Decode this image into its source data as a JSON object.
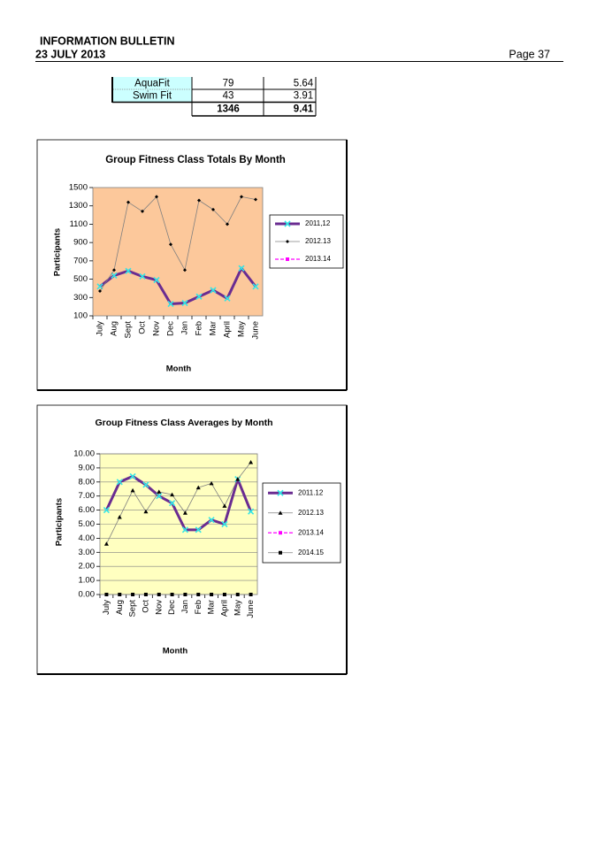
{
  "header": {
    "title": "INFORMATION BULLETIN",
    "date": "23 JULY 2013",
    "page": "Page 37"
  },
  "table": {
    "rows": [
      [
        "AquaFit",
        "79",
        "5.64"
      ],
      [
        "Swim Fit",
        "43",
        "3.91"
      ]
    ],
    "total": [
      "1346",
      "9.41"
    ]
  },
  "chart_data": [
    {
      "type": "line",
      "title": "Group Fitness Class Totals By Month",
      "y_label": "Participants",
      "x_label": "Month",
      "categories": [
        "July",
        "Aug",
        "Sept",
        "Oct",
        "Nov",
        "Dec",
        "Jan",
        "Feb",
        "Mar",
        "April",
        "May",
        "June"
      ],
      "ylim": [
        100,
        1500
      ],
      "yticks": [
        100,
        300,
        500,
        700,
        900,
        1100,
        1300,
        1500
      ],
      "grid": false,
      "plot_background": "#fcc89b",
      "legend": "right",
      "series": [
        {
          "name": "2011,12",
          "color": "#6a2c91",
          "marker_color": "#33e6e6",
          "marker": "x",
          "width": 3,
          "dash": false,
          "values": [
            420,
            540,
            590,
            530,
            490,
            230,
            240,
            310,
            380,
            290,
            620,
            420
          ]
        },
        {
          "name": "2012.13",
          "color": "#808080",
          "marker_color": "#000000",
          "marker": "diamond",
          "width": 0.8,
          "dash": false,
          "values": [
            370,
            600,
            1340,
            1240,
            1400,
            880,
            600,
            1360,
            1260,
            1100,
            1400,
            1370
          ]
        },
        {
          "name": "2013.14",
          "color": "#ff00ff",
          "marker_color": "#ff00ff",
          "marker": "square",
          "width": 1.2,
          "dash": true,
          "values": [
            null,
            null,
            null,
            null,
            null,
            null,
            null,
            null,
            null,
            null,
            null,
            null
          ]
        }
      ]
    },
    {
      "type": "line",
      "title": "Group Fitness Class Averages by Month",
      "y_label": "Participants",
      "x_label": "Month",
      "categories": [
        "July",
        "Aug",
        "Sept",
        "Oct",
        "Nov",
        "Dec",
        "Jan",
        "Feb",
        "Mar",
        "April",
        "May",
        "June"
      ],
      "ylim": [
        0,
        10
      ],
      "yticks": [
        {
          "value": 0,
          "label": "0.00"
        },
        {
          "value": 1,
          "label": "1.00"
        },
        {
          "value": 2,
          "label": "2.00"
        },
        {
          "value": 3,
          "label": "3.00"
        },
        {
          "value": 4,
          "label": "4.00"
        },
        {
          "value": 5,
          "label": "5.00"
        },
        {
          "value": 6,
          "label": "6.00"
        },
        {
          "value": 7,
          "label": "7.00"
        },
        {
          "value": 8,
          "label": "8.00"
        },
        {
          "value": 9,
          "label": "9.00"
        },
        {
          "value": 10,
          "label": "10.00"
        }
      ],
      "grid": true,
      "plot_background": "#ffffc0",
      "legend": "right",
      "series": [
        {
          "name": "2011.12",
          "color": "#6a2c91",
          "marker_color": "#33e6e6",
          "marker": "x",
          "width": 3,
          "dash": false,
          "values": [
            6.0,
            8.0,
            8.4,
            7.8,
            7.0,
            6.5,
            4.6,
            4.6,
            5.3,
            5.0,
            8.2,
            5.9
          ]
        },
        {
          "name": "2012.13",
          "color": "#808080",
          "marker_color": "#000000",
          "marker": "triangle",
          "width": 0.8,
          "dash": false,
          "values": [
            3.6,
            5.5,
            7.4,
            5.9,
            7.3,
            7.1,
            5.8,
            7.6,
            7.9,
            6.3,
            8.2,
            9.4
          ]
        },
        {
          "name": "2013.14",
          "color": "#ff00ff",
          "marker_color": "#ff00ff",
          "marker": "square",
          "width": 1.2,
          "dash": true,
          "values": [
            null,
            null,
            null,
            null,
            null,
            null,
            null,
            null,
            null,
            null,
            null,
            null
          ]
        },
        {
          "name": "2014.15",
          "color": "#808080",
          "marker_color": "#000000",
          "marker": "square",
          "width": 0.8,
          "dash": false,
          "values": [
            0,
            0,
            0,
            0,
            0,
            0,
            0,
            0,
            0,
            0,
            0,
            0
          ]
        }
      ]
    }
  ]
}
